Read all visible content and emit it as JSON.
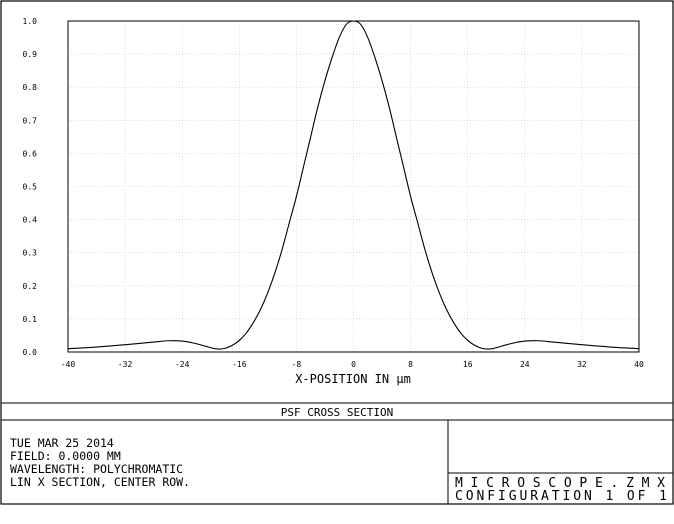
{
  "chart_data": {
    "type": "line",
    "title": "PSF CROSS SECTION",
    "xlabel": "X-POSITION IN μm",
    "ylabel": "",
    "xlim": [
      -40,
      40
    ],
    "ylim": [
      0,
      1
    ],
    "grid": true,
    "x_ticks": [
      "-40",
      "-32",
      "-24",
      "-16",
      "-8",
      "0",
      "8",
      "16",
      "24",
      "32",
      "40"
    ],
    "y_ticks": [
      "0.0",
      "0.1",
      "0.2",
      "0.3",
      "0.4",
      "0.5",
      "0.6",
      "0.7",
      "0.8",
      "0.9",
      "1.0"
    ],
    "series": [
      {
        "x": [
          -40,
          -36,
          -32,
          -28,
          -26,
          -24,
          -22,
          -20,
          -19,
          -18,
          -17,
          -16,
          -15,
          -14,
          -13,
          -12,
          -11,
          -10,
          -9,
          -8,
          -7,
          -6,
          -5,
          -4,
          -3,
          -2,
          -1,
          0,
          1,
          2,
          3,
          4,
          5,
          6,
          7,
          8,
          9,
          10,
          11,
          12,
          13,
          14,
          15,
          16,
          17,
          18,
          19,
          20,
          22,
          24,
          26,
          28,
          32,
          36,
          40
        ],
        "y": [
          0.01,
          0.015,
          0.022,
          0.03,
          0.034,
          0.033,
          0.025,
          0.013,
          0.009,
          0.011,
          0.02,
          0.035,
          0.058,
          0.09,
          0.13,
          0.18,
          0.24,
          0.31,
          0.39,
          0.47,
          0.56,
          0.65,
          0.74,
          0.82,
          0.89,
          0.95,
          0.99,
          1.0,
          0.99,
          0.95,
          0.89,
          0.82,
          0.74,
          0.65,
          0.56,
          0.47,
          0.39,
          0.31,
          0.24,
          0.18,
          0.13,
          0.09,
          0.058,
          0.035,
          0.02,
          0.011,
          0.009,
          0.013,
          0.025,
          0.033,
          0.034,
          0.03,
          0.022,
          0.015,
          0.01
        ]
      }
    ]
  },
  "footer": {
    "date": "TUE MAR 25 2014",
    "field": "FIELD: 0.0000 MM",
    "wavelength": "WAVELENGTH: POLYCHROMATIC",
    "section": "LIN X SECTION, CENTER ROW.",
    "file": "MICROSCOPE.ZMX",
    "configuration": "CONFIGURATION 1 OF 1"
  },
  "colors": {
    "line": "#000000",
    "grid": "#c8c8c8",
    "border": "#000000",
    "background": "#ffffff"
  }
}
